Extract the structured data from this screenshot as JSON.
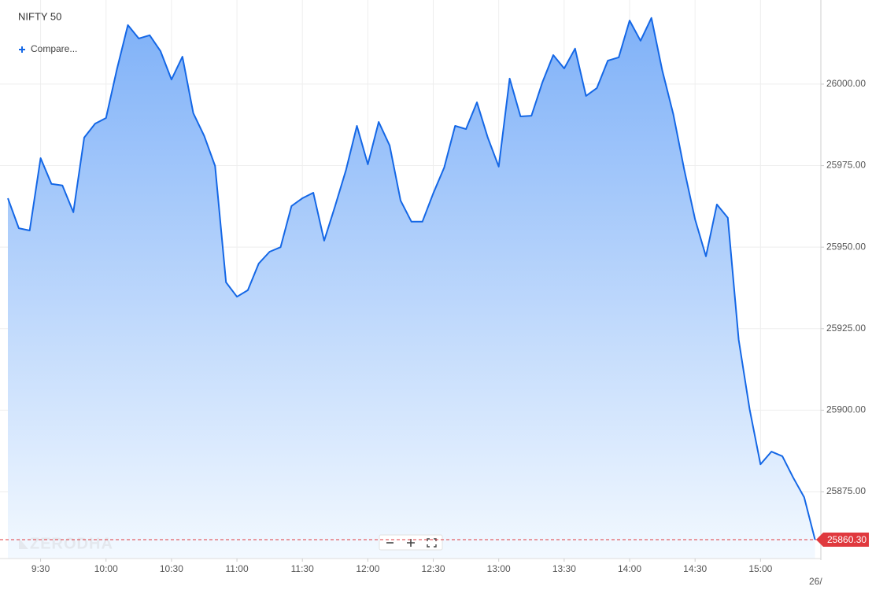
{
  "chart_data": {
    "type": "area",
    "title": "NIFTY 50",
    "compare_label": "Compare...",
    "watermark": "ZERODHA",
    "x": [
      "9:15",
      "9:20",
      "9:25",
      "9:30",
      "9:35",
      "9:40",
      "9:45",
      "9:50",
      "9:55",
      "10:00",
      "10:05",
      "10:10",
      "10:15",
      "10:20",
      "10:25",
      "10:30",
      "10:35",
      "10:40",
      "10:45",
      "10:50",
      "10:55",
      "11:00",
      "11:05",
      "11:10",
      "11:15",
      "11:20",
      "11:25",
      "11:30",
      "11:35",
      "11:40",
      "11:45",
      "11:50",
      "11:55",
      "12:00",
      "12:05",
      "12:10",
      "12:15",
      "12:20",
      "12:25",
      "12:30",
      "12:35",
      "12:40",
      "12:45",
      "12:50",
      "12:55",
      "13:00",
      "13:05",
      "13:10",
      "13:15",
      "13:20",
      "13:25",
      "13:30",
      "13:35",
      "13:40",
      "13:45",
      "13:50",
      "13:55",
      "14:00",
      "14:05",
      "14:10",
      "14:15",
      "14:20",
      "14:25",
      "14:30",
      "14:35",
      "14:40",
      "14:45",
      "14:50",
      "14:55",
      "15:00",
      "15:05",
      "15:10",
      "15:15",
      "15:20",
      "15:25"
    ],
    "series": [
      {
        "name": "NIFTY 50",
        "color": "#1467e6",
        "values": [
          25965.0,
          25955.8,
          25955.1,
          25977.3,
          25969.4,
          25968.9,
          25960.7,
          25983.6,
          25987.9,
          25989.6,
          26004.6,
          26018.1,
          26014.0,
          26015.0,
          26010.1,
          26001.4,
          26008.4,
          25991.1,
          25984.1,
          25974.9,
          25939.2,
          25934.8,
          25936.8,
          25945.0,
          25948.6,
          25950.0,
          25962.6,
          25965.0,
          25966.7,
          25952.0,
          25962.6,
          25973.7,
          25987.2,
          25975.4,
          25988.4,
          25981.2,
          25964.3,
          25957.8,
          25957.8,
          25966.5,
          25974.4,
          25987.2,
          25986.2,
          25994.4,
          25983.6,
          25974.7,
          26001.7,
          25990.1,
          25990.3,
          26000.5,
          26008.9,
          26004.8,
          26010.9,
          25996.4,
          25998.8,
          26007.2,
          26008.2,
          26019.5,
          26013.3,
          26020.3,
          26004.1,
          25990.8,
          25973.9,
          25958.5,
          25947.2,
          25963.1,
          25959.0,
          25921.6,
          25900.3,
          25883.4,
          25887.3,
          25885.9,
          25879.3,
          25873.3,
          25860.3
        ]
      }
    ],
    "xticks": [
      "9:30",
      "10:00",
      "10:30",
      "11:00",
      "11:30",
      "12:00",
      "12:30",
      "13:00",
      "13:30",
      "14:00",
      "14:30",
      "15:00"
    ],
    "next_day_label": "26/",
    "ylim": [
      25854.5,
      26025.8
    ],
    "yticks": [
      {
        "value": 25875,
        "label": "25875.00"
      },
      {
        "value": 25900,
        "label": "25900.00"
      },
      {
        "value": 25925,
        "label": "25925.00"
      },
      {
        "value": 25950,
        "label": "25950.00"
      },
      {
        "value": 25975,
        "label": "25975.00"
      },
      {
        "value": 26000,
        "label": "26000.00"
      }
    ],
    "last_price": {
      "value": 25860.3,
      "label": "25860.30"
    },
    "grid": true
  }
}
